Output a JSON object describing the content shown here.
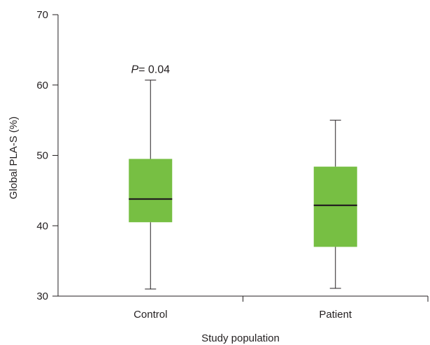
{
  "chart_data": {
    "type": "box",
    "categories": [
      "Control",
      "Patient"
    ],
    "series": [
      {
        "category": "Control",
        "min": 31.0,
        "q1": 40.5,
        "median": 43.8,
        "q3": 49.5,
        "max": 60.7
      },
      {
        "category": "Patient",
        "min": 31.1,
        "q1": 37.0,
        "median": 42.9,
        "q3": 48.4,
        "max": 55.0
      }
    ],
    "xlabel": "Study population",
    "ylabel": "Global PLA-S (%)",
    "ylim": [
      30,
      70
    ],
    "yticks": [
      30,
      40,
      50,
      60,
      70
    ],
    "grid": false,
    "box_color": "#77bf43",
    "line_color": "#231f20",
    "annotation": {
      "p_symbol": "P",
      "text": "= 0.04",
      "category": "Control"
    }
  }
}
